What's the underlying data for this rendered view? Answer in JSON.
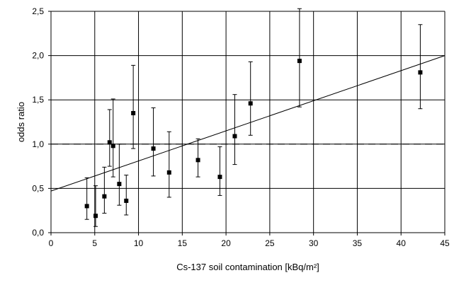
{
  "chart_data": {
    "type": "scatter",
    "title": "",
    "xlabel": "Cs-137 soil contamination [kBq/m²]",
    "ylabel": "odds ratio",
    "xlim": [
      0,
      45
    ],
    "ylim": [
      0,
      2.5
    ],
    "x_ticks": [
      "0",
      "5",
      "10",
      "15",
      "20",
      "25",
      "30",
      "35",
      "40",
      "45"
    ],
    "y_ticks": [
      "0,0",
      "0,5",
      "1,0",
      "1,5",
      "2,0",
      "2,5"
    ],
    "grid": true,
    "reference_line": {
      "y": 1.0,
      "style": "dashed"
    },
    "trend_line": {
      "type": "linear",
      "from": [
        0,
        0.47
      ],
      "to": [
        45,
        2.0
      ]
    },
    "points": [
      {
        "x": 4.1,
        "y": 0.3,
        "low": 0.15,
        "high": 0.62
      },
      {
        "x": 5.1,
        "y": 0.19,
        "low": 0.07,
        "high": 0.53
      },
      {
        "x": 6.1,
        "y": 0.41,
        "low": 0.22,
        "high": 0.74
      },
      {
        "x": 6.7,
        "y": 1.02,
        "low": 0.75,
        "high": 1.39
      },
      {
        "x": 7.1,
        "y": 0.98,
        "low": 0.63,
        "high": 1.51
      },
      {
        "x": 7.8,
        "y": 0.55,
        "low": 0.31,
        "high": 1.0
      },
      {
        "x": 8.6,
        "y": 0.36,
        "low": 0.2,
        "high": 0.65
      },
      {
        "x": 9.4,
        "y": 1.35,
        "low": 0.95,
        "high": 1.89
      },
      {
        "x": 11.7,
        "y": 0.95,
        "low": 0.64,
        "high": 1.41
      },
      {
        "x": 13.5,
        "y": 0.68,
        "low": 0.4,
        "high": 1.14
      },
      {
        "x": 16.8,
        "y": 0.82,
        "low": 0.63,
        "high": 1.06
      },
      {
        "x": 19.3,
        "y": 0.63,
        "low": 0.42,
        "high": 0.97
      },
      {
        "x": 21.0,
        "y": 1.09,
        "low": 0.77,
        "high": 1.56
      },
      {
        "x": 22.8,
        "y": 1.46,
        "low": 1.1,
        "high": 1.93
      },
      {
        "x": 28.4,
        "y": 1.94,
        "low": 1.42,
        "high": 2.53
      },
      {
        "x": 42.2,
        "y": 1.81,
        "low": 1.4,
        "high": 2.35
      }
    ],
    "colors": {
      "marker": "#000000",
      "grid": "#000000",
      "axis_text": "#000000"
    }
  }
}
